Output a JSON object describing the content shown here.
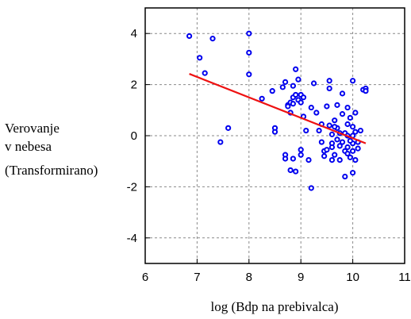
{
  "chart_data": {
    "type": "scatter",
    "xlabel": "log (Bdp na prebivalca)",
    "ylabel_lines": [
      "Verovanje",
      "v nebesa",
      "(Transformirano)"
    ],
    "xlim": [
      6,
      11
    ],
    "ylim": [
      -5,
      5
    ],
    "xticks": [
      6,
      7,
      8,
      9,
      10,
      11
    ],
    "yticks": [
      4,
      2,
      0,
      -2,
      -4
    ],
    "grid": true,
    "point_color": "#0000ee",
    "line_color": "#ee1111",
    "trendline": {
      "x": [
        6.85,
        10.25
      ],
      "y": [
        2.42,
        -0.3
      ]
    },
    "points": [
      [
        6.85,
        3.9
      ],
      [
        7.05,
        3.05
      ],
      [
        7.15,
        2.45
      ],
      [
        7.3,
        3.8
      ],
      [
        7.45,
        -0.25
      ],
      [
        7.6,
        0.3
      ],
      [
        8.0,
        4.0
      ],
      [
        8.0,
        3.25
      ],
      [
        8.0,
        2.4
      ],
      [
        8.25,
        1.45
      ],
      [
        8.45,
        1.75
      ],
      [
        8.5,
        0.3
      ],
      [
        8.5,
        0.15
      ],
      [
        8.65,
        1.9
      ],
      [
        8.7,
        2.1
      ],
      [
        8.75,
        1.2
      ],
      [
        8.75,
        1.15
      ],
      [
        8.8,
        0.9
      ],
      [
        8.8,
        1.3
      ],
      [
        8.85,
        1.95
      ],
      [
        8.85,
        1.5
      ],
      [
        8.85,
        1.25
      ],
      [
        8.9,
        2.6
      ],
      [
        8.9,
        1.6
      ],
      [
        8.95,
        2.2
      ],
      [
        8.95,
        1.4
      ],
      [
        9.0,
        1.6
      ],
      [
        9.0,
        1.3
      ],
      [
        9.05,
        1.5
      ],
      [
        9.05,
        0.75
      ],
      [
        9.1,
        0.2
      ],
      [
        8.85,
        -0.9
      ],
      [
        8.7,
        -0.75
      ],
      [
        8.7,
        -0.9
      ],
      [
        8.8,
        -1.35
      ],
      [
        8.9,
        -1.4
      ],
      [
        9.0,
        -0.75
      ],
      [
        9.0,
        -0.55
      ],
      [
        9.15,
        -0.95
      ],
      [
        9.2,
        -2.05
      ],
      [
        9.2,
        1.1
      ],
      [
        9.25,
        2.05
      ],
      [
        9.3,
        0.9
      ],
      [
        9.35,
        0.2
      ],
      [
        9.4,
        -0.25
      ],
      [
        9.4,
        0.45
      ],
      [
        9.45,
        -0.8
      ],
      [
        9.45,
        -0.6
      ],
      [
        9.5,
        1.15
      ],
      [
        9.55,
        2.15
      ],
      [
        9.55,
        1.85
      ],
      [
        9.55,
        0.4
      ],
      [
        9.6,
        0.05
      ],
      [
        9.6,
        -0.3
      ],
      [
        9.65,
        -0.75
      ],
      [
        9.65,
        0.6
      ],
      [
        9.7,
        1.2
      ],
      [
        9.7,
        0.3
      ],
      [
        9.75,
        -0.95
      ],
      [
        9.75,
        -0.4
      ],
      [
        9.8,
        1.65
      ],
      [
        9.8,
        0.85
      ],
      [
        9.85,
        0.1
      ],
      [
        9.85,
        -0.6
      ],
      [
        9.85,
        -1.6
      ],
      [
        9.9,
        0.45
      ],
      [
        9.9,
        1.1
      ],
      [
        9.9,
        0.0
      ],
      [
        9.95,
        -0.85
      ],
      [
        9.95,
        0.7
      ],
      [
        10.0,
        2.15
      ],
      [
        10.0,
        0.35
      ],
      [
        10.0,
        -0.3
      ],
      [
        10.0,
        -0.6
      ],
      [
        10.0,
        -1.45
      ],
      [
        10.05,
        0.9
      ],
      [
        10.05,
        0.15
      ],
      [
        10.05,
        -0.95
      ],
      [
        10.1,
        -0.5
      ],
      [
        10.15,
        0.2
      ],
      [
        10.2,
        1.8
      ],
      [
        10.25,
        1.85
      ],
      [
        10.25,
        1.75
      ],
      [
        9.6,
        -0.45
      ],
      [
        9.7,
        -0.15
      ],
      [
        9.8,
        -0.25
      ],
      [
        9.9,
        -0.45
      ],
      [
        9.95,
        -0.2
      ],
      [
        9.65,
        0.35
      ],
      [
        9.75,
        0.1
      ],
      [
        10.1,
        -0.25
      ],
      [
        9.5,
        -0.55
      ],
      [
        9.6,
        -0.95
      ],
      [
        9.9,
        -0.7
      ],
      [
        10.0,
        0.0
      ]
    ]
  }
}
